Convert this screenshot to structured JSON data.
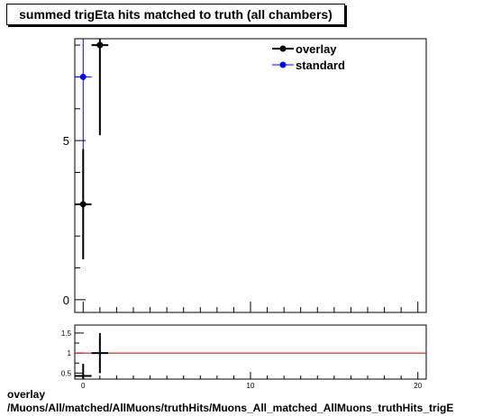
{
  "title": "summed trigEta hits matched to truth (all chambers)",
  "footer": {
    "line1": "overlay",
    "line2": "/Muons/All/matched/AllMuons/truthHits/Muons_All_matched_AllMuons_truthHits_trigE"
  },
  "colors": {
    "overlay": "#000000",
    "standard": "#0000ff",
    "ratio_line": "#cc0000",
    "axis": "#000000"
  },
  "chart_data": [
    {
      "type": "scatter",
      "title": "summed trigEta hits matched to truth (all chambers)",
      "xlim": [
        -0.5,
        20.5
      ],
      "ylim": [
        -0.4,
        8.2
      ],
      "yticks_labeled": [
        0,
        5
      ],
      "grid": false,
      "legend_position": "top-right",
      "series": [
        {
          "name": "overlay",
          "x": [
            0,
            1
          ],
          "y": [
            3,
            8
          ],
          "yerr": [
            1.73,
            2.83
          ],
          "xerr": [
            0.5,
            0.5
          ]
        },
        {
          "name": "standard",
          "x": [
            0,
            1
          ],
          "y": [
            7,
            8
          ],
          "yerr": [
            2.65,
            2.83
          ],
          "xerr": [
            0.5,
            0.5
          ]
        }
      ]
    },
    {
      "type": "scatter",
      "xlim": [
        -0.5,
        20.5
      ],
      "ylim": [
        0.35,
        1.7
      ],
      "xticks_labeled": [
        0,
        10,
        20
      ],
      "yticks_labeled": [
        0.5,
        1,
        1.5
      ],
      "reference_line": 1,
      "series": [
        {
          "x": [
            0,
            1
          ],
          "y": [
            0.43,
            1.0
          ],
          "yerr": [
            0.3,
            0.5
          ],
          "xerr": [
            0.5,
            0.5
          ]
        }
      ]
    }
  ]
}
